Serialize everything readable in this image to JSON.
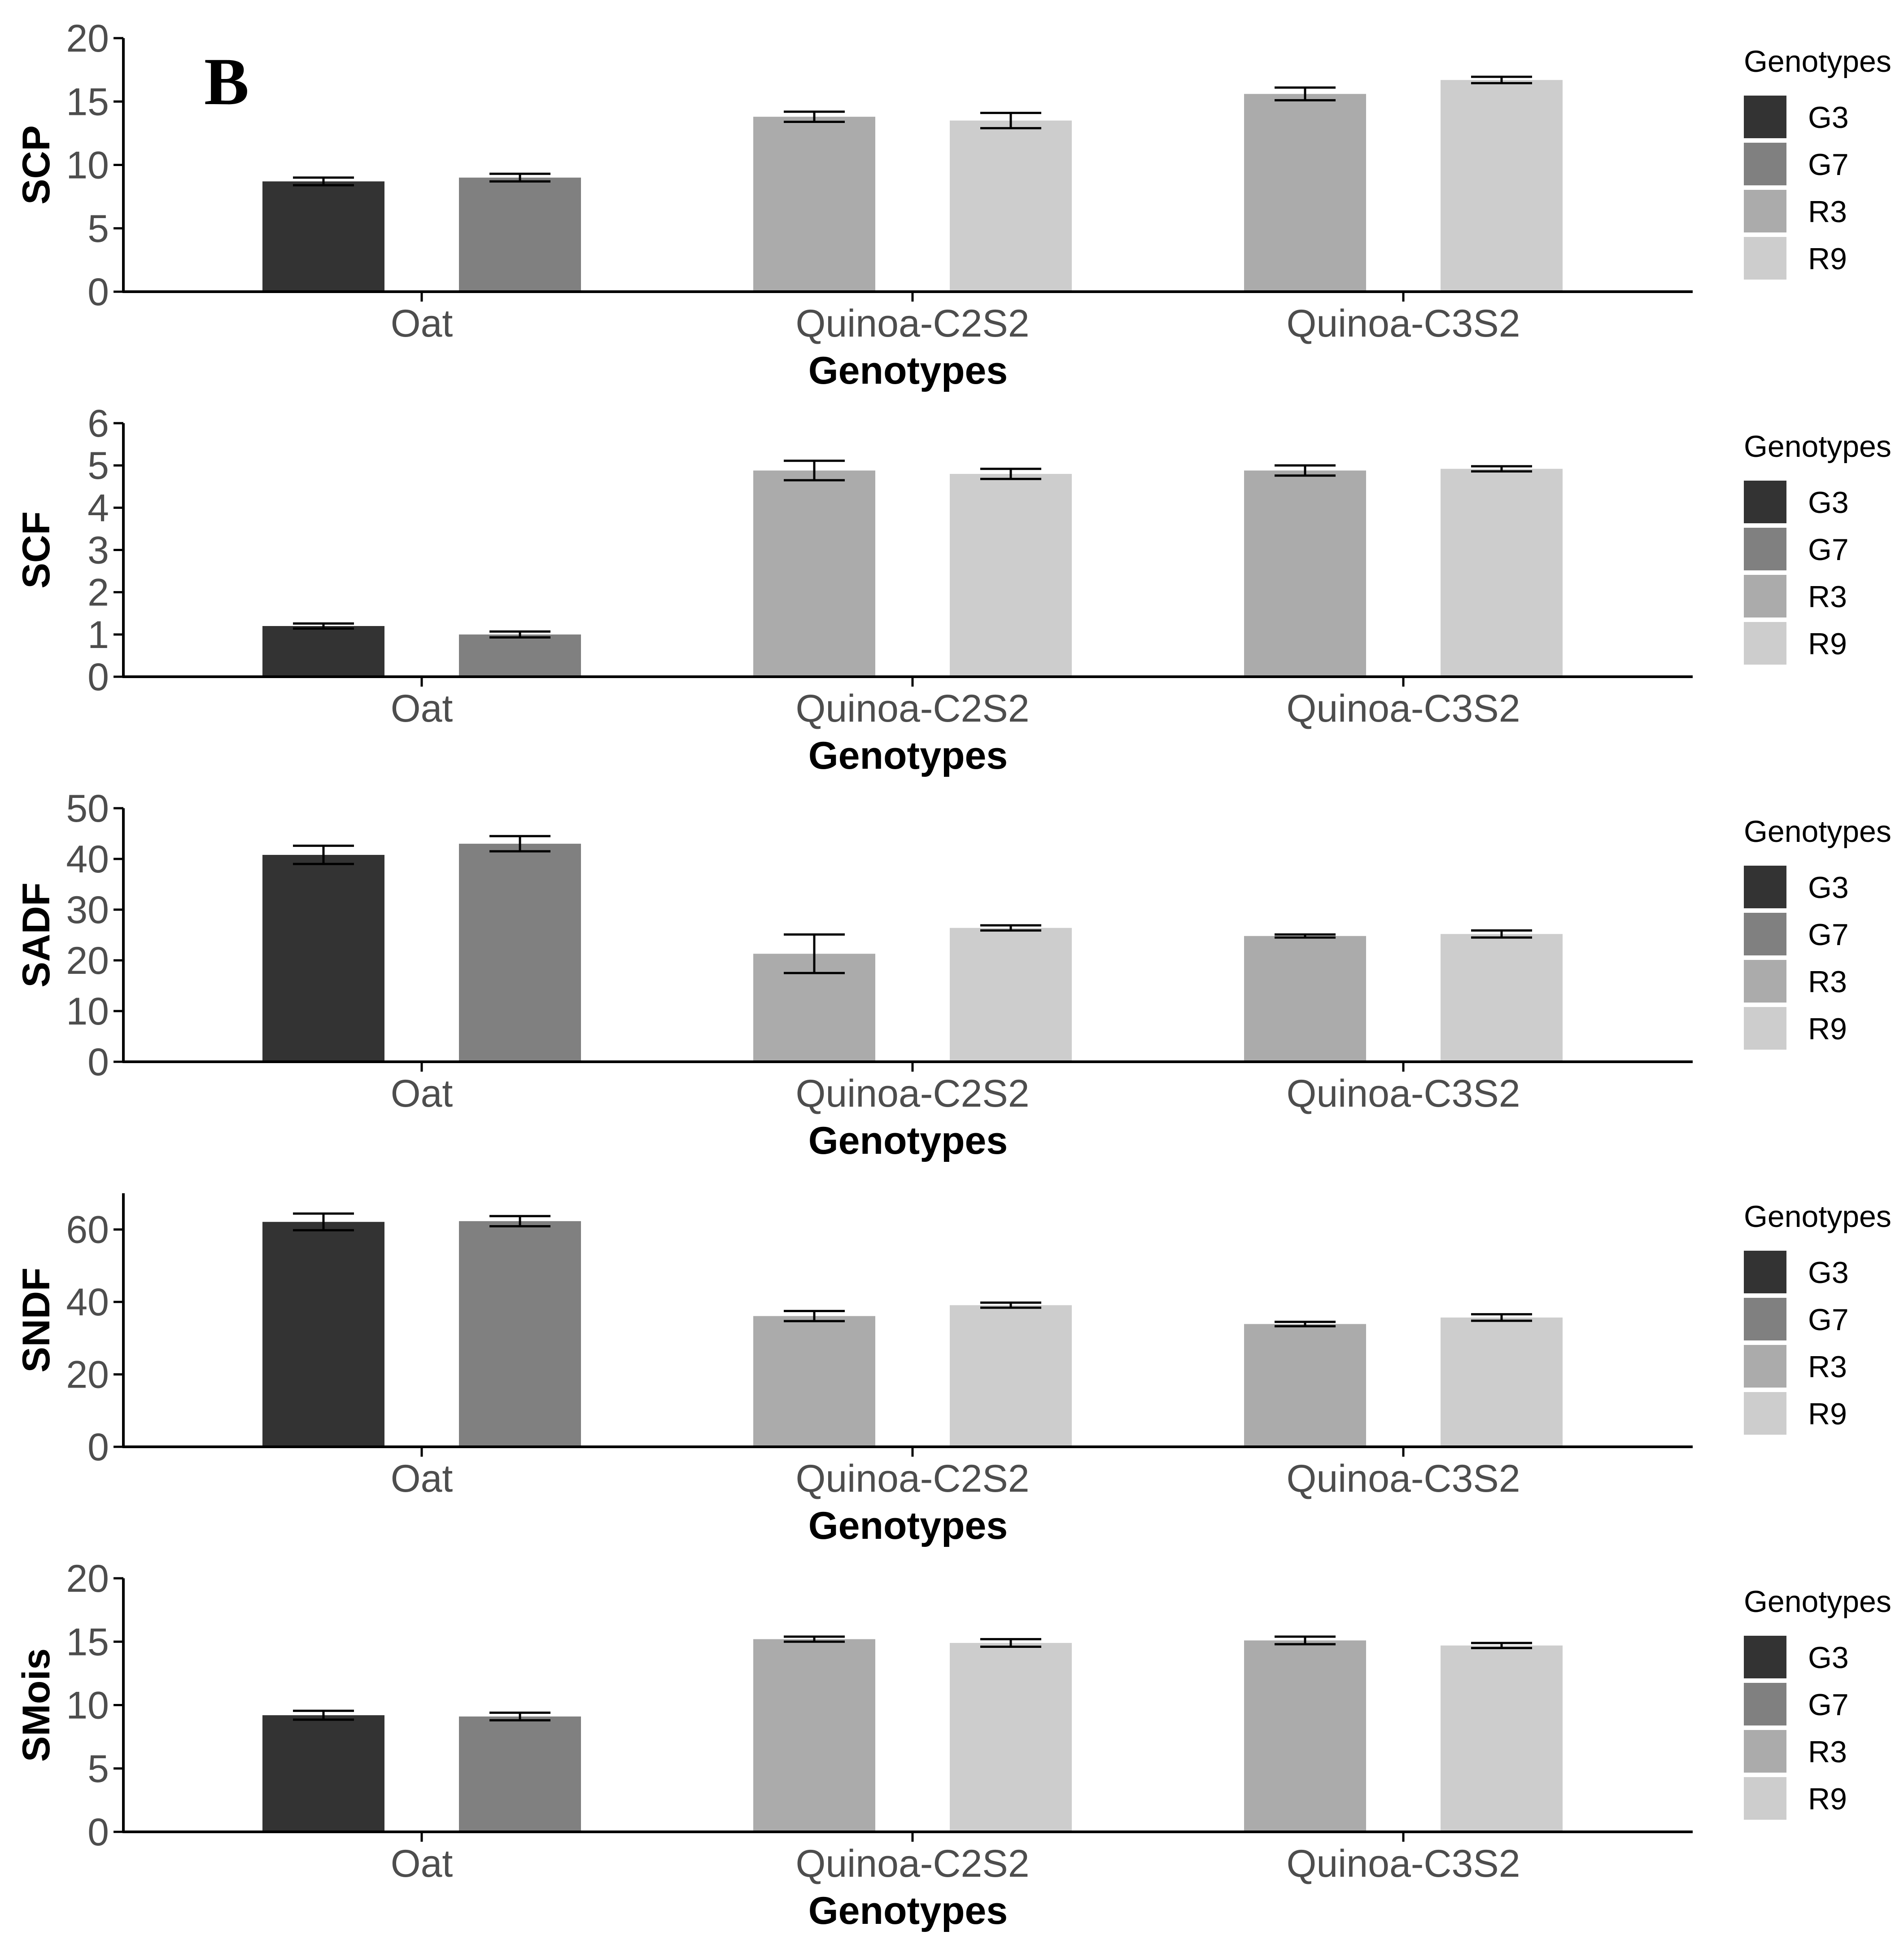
{
  "figure": {
    "panel_letter": "B",
    "colors": {
      "G3": "#333333",
      "G7": "#808080",
      "R3": "#ababab",
      "R9": "#cdcdcd",
      "axis": "#000000",
      "tick_text": "#4d4d4d",
      "background": "#ffffff"
    }
  },
  "chart_data": [
    {
      "type": "bar",
      "title": "",
      "xlabel": "Genotypes",
      "ylabel": "SCP",
      "ylim": [
        0,
        20
      ],
      "yticks": [
        "0",
        "5",
        "10",
        "15",
        "20"
      ],
      "categories": [
        "Oat",
        "Quinoa-C2S2",
        "Quinoa-C3S2"
      ],
      "legend": {
        "title": "Genotypes",
        "labels": [
          "G3",
          "G7",
          "R3",
          "R9"
        ],
        "placement": "right"
      },
      "bars": [
        {
          "category": "Oat",
          "genotype": "G3",
          "value": 8.7,
          "err": 0.3
        },
        {
          "category": "Oat",
          "genotype": "G7",
          "value": 9.0,
          "err": 0.3
        },
        {
          "category": "Quinoa-C2S2",
          "genotype": "R3",
          "value": 13.8,
          "err": 0.4
        },
        {
          "category": "Quinoa-C2S2",
          "genotype": "R9",
          "value": 13.5,
          "err": 0.6
        },
        {
          "category": "Quinoa-C3S2",
          "genotype": "R3",
          "value": 15.6,
          "err": 0.5
        },
        {
          "category": "Quinoa-C3S2",
          "genotype": "R9",
          "value": 16.7,
          "err": 0.25
        }
      ]
    },
    {
      "type": "bar",
      "title": "",
      "xlabel": "Genotypes",
      "ylabel": "SCF",
      "ylim": [
        0,
        6
      ],
      "yticks": [
        "0",
        "1",
        "2",
        "3",
        "4",
        "5",
        "6"
      ],
      "categories": [
        "Oat",
        "Quinoa-C2S2",
        "Quinoa-C3S2"
      ],
      "legend": {
        "title": "Genotypes",
        "labels": [
          "G3",
          "G7",
          "R3",
          "R9"
        ],
        "placement": "right"
      },
      "bars": [
        {
          "category": "Oat",
          "genotype": "G3",
          "value": 1.2,
          "err": 0.06
        },
        {
          "category": "Oat",
          "genotype": "G7",
          "value": 1.0,
          "err": 0.07
        },
        {
          "category": "Quinoa-C2S2",
          "genotype": "R3",
          "value": 4.88,
          "err": 0.23
        },
        {
          "category": "Quinoa-C2S2",
          "genotype": "R9",
          "value": 4.8,
          "err": 0.12
        },
        {
          "category": "Quinoa-C3S2",
          "genotype": "R3",
          "value": 4.88,
          "err": 0.12
        },
        {
          "category": "Quinoa-C3S2",
          "genotype": "R9",
          "value": 4.92,
          "err": 0.06
        }
      ]
    },
    {
      "type": "bar",
      "title": "",
      "xlabel": "Genotypes",
      "ylabel": "SADF",
      "ylim": [
        0,
        50
      ],
      "yticks": [
        "0",
        "10",
        "20",
        "30",
        "40",
        "50"
      ],
      "categories": [
        "Oat",
        "Quinoa-C2S2",
        "Quinoa-C3S2"
      ],
      "legend": {
        "title": "Genotypes",
        "labels": [
          "G3",
          "G7",
          "R3",
          "R9"
        ],
        "placement": "right"
      },
      "bars": [
        {
          "category": "Oat",
          "genotype": "G3",
          "value": 40.8,
          "err": 1.8
        },
        {
          "category": "Oat",
          "genotype": "G7",
          "value": 43.0,
          "err": 1.5
        },
        {
          "category": "Quinoa-C2S2",
          "genotype": "R3",
          "value": 21.3,
          "err": 3.8
        },
        {
          "category": "Quinoa-C2S2",
          "genotype": "R9",
          "value": 26.4,
          "err": 0.5
        },
        {
          "category": "Quinoa-C3S2",
          "genotype": "R3",
          "value": 24.8,
          "err": 0.3
        },
        {
          "category": "Quinoa-C3S2",
          "genotype": "R9",
          "value": 25.2,
          "err": 0.7
        }
      ]
    },
    {
      "type": "bar",
      "title": "",
      "xlabel": "Genotypes",
      "ylabel": "SNDF",
      "ylim": [
        0,
        70
      ],
      "yticks": [
        "0",
        "20",
        "40",
        "60"
      ],
      "categories": [
        "Oat",
        "Quinoa-C2S2",
        "Quinoa-C3S2"
      ],
      "legend": {
        "title": "Genotypes",
        "labels": [
          "G3",
          "G7",
          "R3",
          "R9"
        ],
        "placement": "right"
      },
      "bars": [
        {
          "category": "Oat",
          "genotype": "G3",
          "value": 62.1,
          "err": 2.3
        },
        {
          "category": "Oat",
          "genotype": "G7",
          "value": 62.3,
          "err": 1.4
        },
        {
          "category": "Quinoa-C2S2",
          "genotype": "R3",
          "value": 36.1,
          "err": 1.4
        },
        {
          "category": "Quinoa-C2S2",
          "genotype": "R9",
          "value": 39.1,
          "err": 0.7
        },
        {
          "category": "Quinoa-C3S2",
          "genotype": "R3",
          "value": 33.9,
          "err": 0.6
        },
        {
          "category": "Quinoa-C3S2",
          "genotype": "R9",
          "value": 35.7,
          "err": 0.9
        }
      ]
    },
    {
      "type": "bar",
      "title": "",
      "xlabel": "Genotypes",
      "ylabel": "SMois",
      "ylim": [
        0,
        20
      ],
      "yticks": [
        "0",
        "5",
        "10",
        "15",
        "20"
      ],
      "categories": [
        "Oat",
        "Quinoa-C2S2",
        "Quinoa-C3S2"
      ],
      "legend": {
        "title": "Genotypes",
        "labels": [
          "G3",
          "G7",
          "R3",
          "R9"
        ],
        "placement": "right"
      },
      "bars": [
        {
          "category": "Oat",
          "genotype": "G3",
          "value": 9.2,
          "err": 0.35
        },
        {
          "category": "Oat",
          "genotype": "G7",
          "value": 9.1,
          "err": 0.3
        },
        {
          "category": "Quinoa-C2S2",
          "genotype": "R3",
          "value": 15.2,
          "err": 0.2
        },
        {
          "category": "Quinoa-C2S2",
          "genotype": "R9",
          "value": 14.9,
          "err": 0.3
        },
        {
          "category": "Quinoa-C3S2",
          "genotype": "R3",
          "value": 15.1,
          "err": 0.3
        },
        {
          "category": "Quinoa-C3S2",
          "genotype": "R9",
          "value": 14.7,
          "err": 0.2
        }
      ]
    }
  ]
}
